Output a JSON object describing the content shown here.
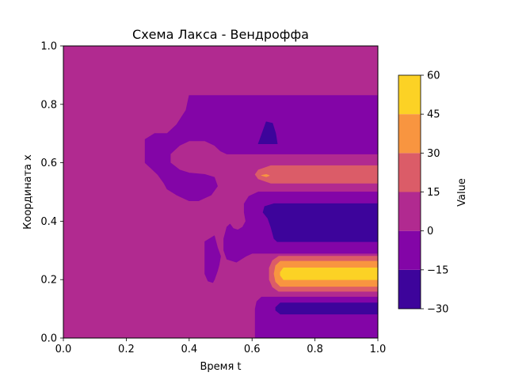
{
  "chart_data": {
    "type": "contourf",
    "title": "Схема Лакса - Вендроффа",
    "xlabel": "Время t",
    "ylabel": "Координата x",
    "xlim": [
      0.0,
      1.0
    ],
    "ylim": [
      0.0,
      1.0
    ],
    "x_ticks": [
      "0.0",
      "0.2",
      "0.4",
      "0.6",
      "0.8",
      "1.0"
    ],
    "y_ticks": [
      "0.0",
      "0.2",
      "0.4",
      "0.6",
      "0.8",
      "1.0"
    ],
    "grid": false,
    "colorbar": {
      "label": "Value",
      "levels": [
        -30,
        -15,
        0,
        15,
        30,
        45,
        60
      ],
      "tick_labels": [
        "−30",
        "−15",
        "0",
        "15",
        "30",
        "45",
        "60"
      ],
      "colors": [
        "#3d049b",
        "#8305a7",
        "#b12a90",
        "#db5c68",
        "#f89540",
        "#fcd225"
      ],
      "cmap": "plasma"
    },
    "background_band": "0..15",
    "regions": [
      {
        "band": "-15..0",
        "color": "#8305a7",
        "outline": [
          [
            0.4,
            0.83
          ],
          [
            0.5,
            0.83
          ],
          [
            1.0,
            0.83
          ],
          [
            1.0,
            0.63
          ],
          [
            0.62,
            0.63
          ],
          [
            0.52,
            0.63
          ],
          [
            0.5,
            0.64
          ],
          [
            0.48,
            0.66
          ],
          [
            0.45,
            0.675
          ],
          [
            0.4,
            0.675
          ],
          [
            0.37,
            0.66
          ],
          [
            0.34,
            0.63
          ],
          [
            0.34,
            0.6
          ],
          [
            0.37,
            0.575
          ],
          [
            0.4,
            0.565
          ],
          [
            0.45,
            0.56
          ],
          [
            0.48,
            0.55
          ],
          [
            0.49,
            0.52
          ],
          [
            0.47,
            0.49
          ],
          [
            0.43,
            0.47
          ],
          [
            0.4,
            0.47
          ],
          [
            0.36,
            0.49
          ],
          [
            0.33,
            0.51
          ],
          [
            0.32,
            0.53
          ],
          [
            0.3,
            0.56
          ],
          [
            0.28,
            0.58
          ],
          [
            0.26,
            0.6
          ],
          [
            0.26,
            0.68
          ],
          [
            0.29,
            0.7
          ],
          [
            0.33,
            0.7
          ],
          [
            0.36,
            0.73
          ],
          [
            0.39,
            0.78
          ]
        ]
      },
      {
        "band": "-30..-15",
        "color": "#3d049b",
        "outline": [
          [
            0.62,
            0.665
          ],
          [
            0.645,
            0.74
          ],
          [
            0.665,
            0.735
          ],
          [
            0.675,
            0.7
          ],
          [
            0.68,
            0.665
          ]
        ]
      },
      {
        "band": "15..30",
        "color": "#db5c68",
        "outline": [
          [
            1.0,
            0.59
          ],
          [
            0.66,
            0.59
          ],
          [
            0.62,
            0.575
          ],
          [
            0.61,
            0.56
          ],
          [
            0.62,
            0.545
          ],
          [
            0.66,
            0.53
          ],
          [
            1.0,
            0.53
          ]
        ]
      },
      {
        "band": "30..45",
        "color": "#f89540",
        "outline": [
          [
            0.63,
            0.557
          ],
          [
            0.645,
            0.56
          ],
          [
            0.655,
            0.556
          ],
          [
            0.645,
            0.552
          ]
        ]
      },
      {
        "band": "-15..0",
        "color": "#8305a7",
        "outline": [
          [
            1.0,
            0.5
          ],
          [
            0.62,
            0.5
          ],
          [
            0.59,
            0.485
          ],
          [
            0.575,
            0.46
          ],
          [
            0.575,
            0.43
          ],
          [
            0.58,
            0.4
          ],
          [
            0.57,
            0.38
          ],
          [
            0.555,
            0.37
          ],
          [
            0.54,
            0.375
          ],
          [
            0.53,
            0.39
          ],
          [
            0.52,
            0.38
          ],
          [
            0.51,
            0.34
          ],
          [
            0.51,
            0.3
          ],
          [
            0.52,
            0.27
          ],
          [
            0.55,
            0.26
          ],
          [
            0.58,
            0.28
          ],
          [
            0.6,
            0.29
          ],
          [
            1.0,
            0.29
          ]
        ]
      },
      {
        "band": "-30..-15",
        "color": "#3d049b",
        "outline": [
          [
            1.0,
            0.46
          ],
          [
            0.67,
            0.46
          ],
          [
            0.64,
            0.45
          ],
          [
            0.635,
            0.43
          ],
          [
            0.65,
            0.41
          ],
          [
            0.66,
            0.38
          ],
          [
            0.67,
            0.34
          ],
          [
            0.68,
            0.33
          ],
          [
            1.0,
            0.33
          ]
        ]
      },
      {
        "band": "-15..0",
        "color": "#8305a7",
        "outline": [
          [
            0.45,
            0.33
          ],
          [
            0.48,
            0.35
          ],
          [
            0.49,
            0.31
          ],
          [
            0.5,
            0.28
          ],
          [
            0.495,
            0.25
          ],
          [
            0.49,
            0.23
          ],
          [
            0.48,
            0.2
          ],
          [
            0.475,
            0.19
          ],
          [
            0.46,
            0.195
          ],
          [
            0.45,
            0.22
          ]
        ]
      },
      {
        "band": "15..30",
        "color": "#db5c68",
        "outline": [
          [
            1.0,
            0.28
          ],
          [
            0.685,
            0.28
          ],
          [
            0.665,
            0.265
          ],
          [
            0.655,
            0.24
          ],
          [
            0.655,
            0.2
          ],
          [
            0.665,
            0.175
          ],
          [
            0.685,
            0.16
          ],
          [
            1.0,
            0.16
          ]
        ]
      },
      {
        "band": "30..45",
        "color": "#f89540",
        "outline": [
          [
            1.0,
            0.263
          ],
          [
            0.69,
            0.263
          ],
          [
            0.675,
            0.248
          ],
          [
            0.67,
            0.22
          ],
          [
            0.675,
            0.193
          ],
          [
            0.69,
            0.177
          ],
          [
            1.0,
            0.177
          ]
        ]
      },
      {
        "band": "45..60",
        "color": "#fcd225",
        "outline": [
          [
            1.0,
            0.24
          ],
          [
            0.7,
            0.24
          ],
          [
            0.69,
            0.225
          ],
          [
            0.69,
            0.215
          ],
          [
            0.7,
            0.2
          ],
          [
            1.0,
            0.2
          ]
        ]
      },
      {
        "band": "-15..0",
        "color": "#8305a7",
        "outline": [
          [
            1.0,
            0.14
          ],
          [
            0.63,
            0.14
          ],
          [
            0.615,
            0.125
          ],
          [
            0.61,
            0.1
          ],
          [
            0.61,
            0.0
          ],
          [
            1.0,
            0.0
          ]
        ]
      },
      {
        "band": "-30..-15",
        "color": "#3d049b",
        "outline": [
          [
            1.0,
            0.12
          ],
          [
            0.69,
            0.12
          ],
          [
            0.675,
            0.105
          ],
          [
            0.675,
            0.095
          ],
          [
            0.69,
            0.082
          ],
          [
            1.0,
            0.082
          ]
        ]
      }
    ]
  }
}
